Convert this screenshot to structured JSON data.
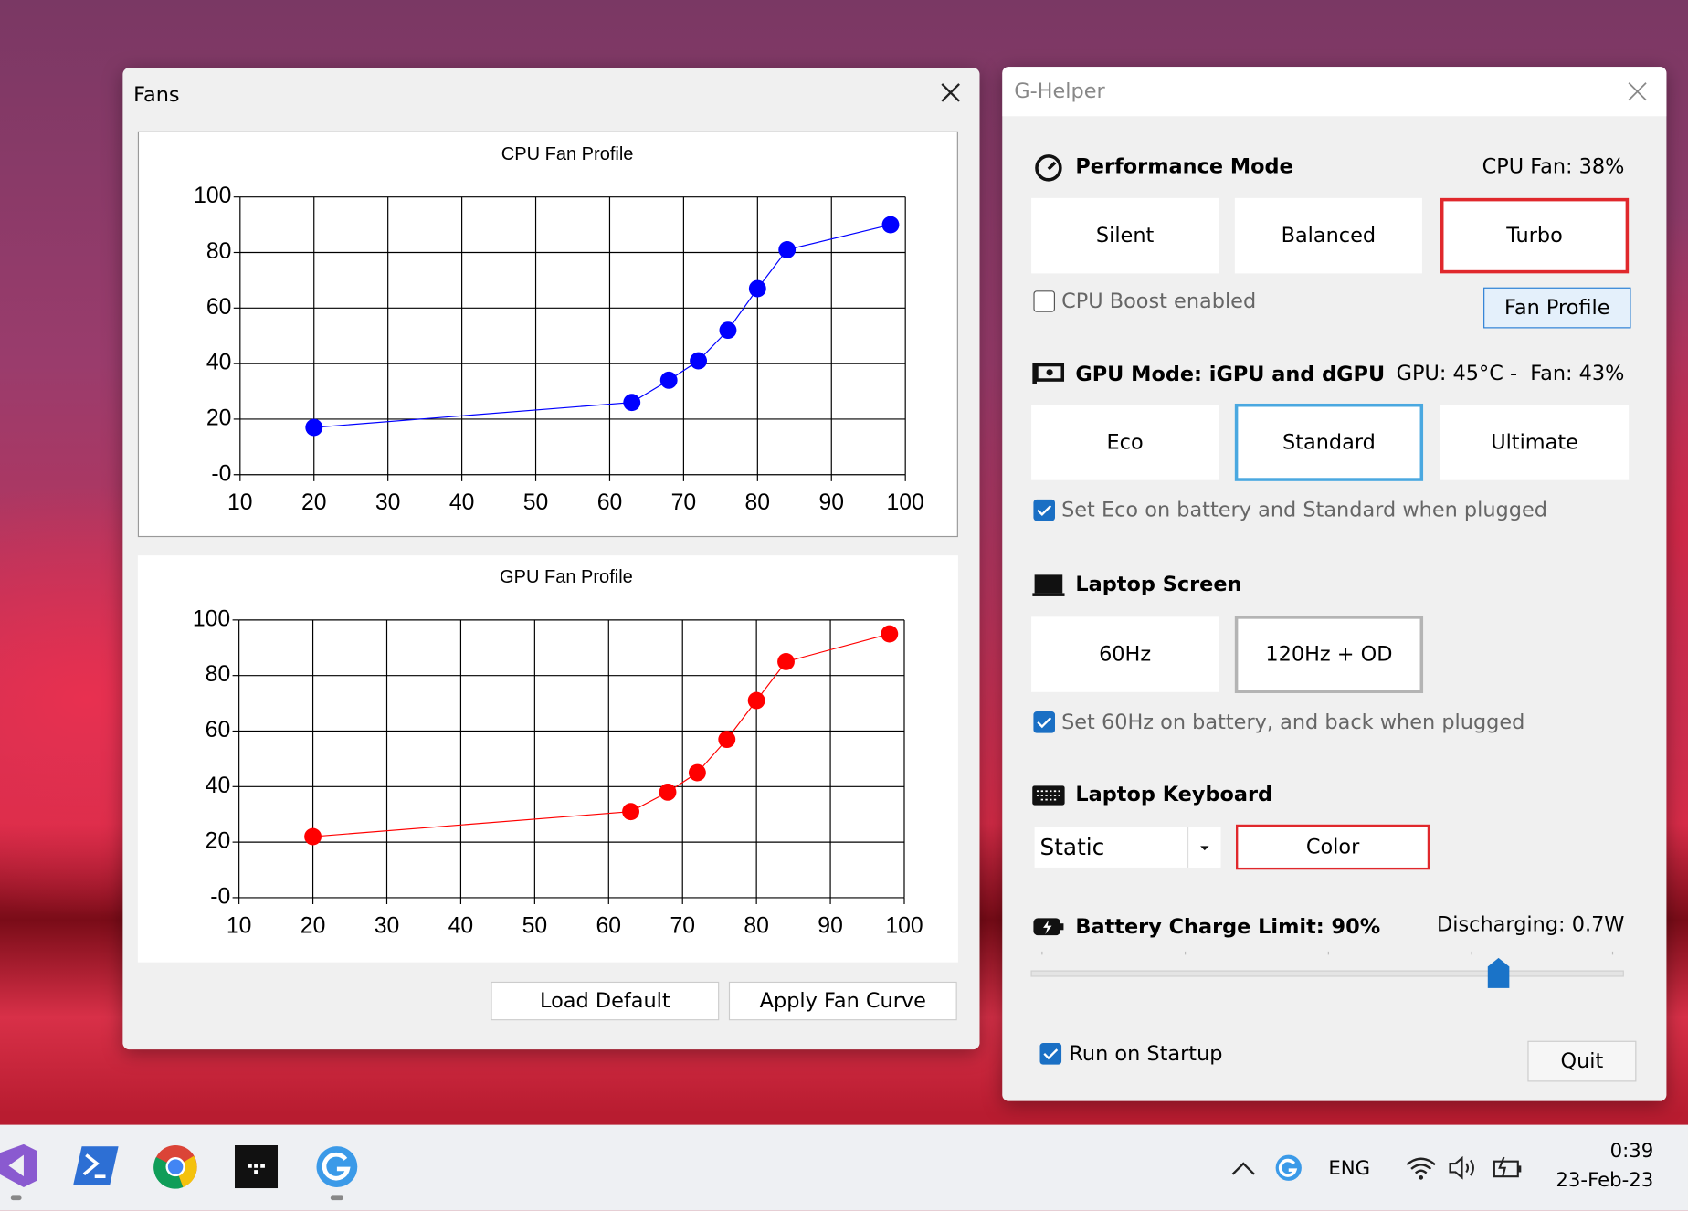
{
  "fans_window": {
    "title": "Fans",
    "buttons": [
      "Load Default",
      "Apply Fan Curve"
    ]
  },
  "chart_data": [
    {
      "type": "line",
      "title": "CPU Fan Profile",
      "x": [
        20,
        63,
        68,
        72,
        76,
        80,
        84,
        98
      ],
      "values": [
        17,
        26,
        34,
        41,
        52,
        67,
        81,
        90
      ],
      "color": "#0000ff",
      "xlim": [
        10,
        100
      ],
      "ylim": [
        0,
        100
      ],
      "xticks": [
        10,
        20,
        30,
        40,
        50,
        60,
        70,
        80,
        90,
        100
      ],
      "yticks": [
        {
          "value": 0,
          "label": "-0"
        },
        20,
        40,
        60,
        80,
        100
      ],
      "grid": true
    },
    {
      "type": "line",
      "title": "GPU Fan Profile",
      "x": [
        20,
        63,
        68,
        72,
        76,
        80,
        84,
        98
      ],
      "values": [
        22,
        31,
        38,
        45,
        57,
        71,
        85,
        95
      ],
      "color": "#ff0000",
      "xlim": [
        10,
        100
      ],
      "ylim": [
        0,
        100
      ],
      "xticks": [
        10,
        20,
        30,
        40,
        50,
        60,
        70,
        80,
        90,
        100
      ],
      "yticks": [
        {
          "value": 0,
          "label": "-0"
        },
        20,
        40,
        60,
        80,
        100
      ],
      "grid": true
    }
  ],
  "helper_window": {
    "title": "G-Helper",
    "performance": {
      "heading": "Performance Mode",
      "status": "CPU Fan: 38%",
      "modes": [
        "Silent",
        "Balanced",
        "Turbo"
      ],
      "boost": "CPU Boost enabled",
      "fan_profile": "Fan Profile"
    },
    "gpu": {
      "heading": "GPU Mode: iGPU and dGPU",
      "status": "GPU: 45°C -  Fan: 43%",
      "modes": [
        "Eco",
        "Standard",
        "Ultimate"
      ],
      "auto": "Set Eco on battery and Standard when plugged"
    },
    "screen": {
      "heading": "Laptop Screen",
      "modes": [
        "60Hz",
        "120Hz + OD"
      ],
      "auto": "Set 60Hz on battery, and back when plugged"
    },
    "keyboard": {
      "heading": "Laptop Keyboard",
      "mode": "Static",
      "color": "Color"
    },
    "battery": {
      "heading": "Battery Charge Limit: 90%",
      "status": "Discharging: 0.7W"
    },
    "startup": "Run on Startup",
    "quit": "Quit"
  },
  "taskbar": {
    "language": "ENG",
    "time": "0:39",
    "date": "23-Feb-23"
  }
}
